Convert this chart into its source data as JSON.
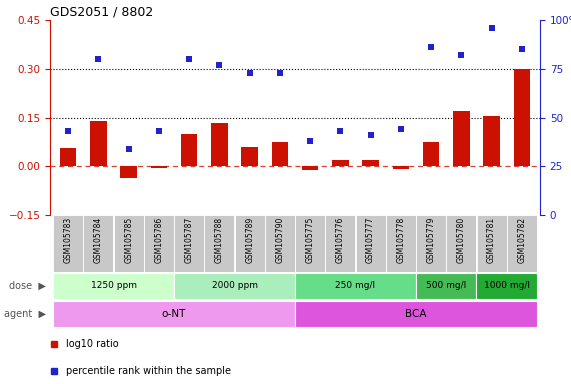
{
  "title": "GDS2051 / 8802",
  "samples": [
    "GSM105783",
    "GSM105784",
    "GSM105785",
    "GSM105786",
    "GSM105787",
    "GSM105788",
    "GSM105789",
    "GSM105790",
    "GSM105775",
    "GSM105776",
    "GSM105777",
    "GSM105778",
    "GSM105779",
    "GSM105780",
    "GSM105781",
    "GSM105782"
  ],
  "log10_ratio": [
    0.055,
    0.14,
    -0.035,
    -0.005,
    0.1,
    0.133,
    0.06,
    0.075,
    -0.012,
    0.018,
    0.018,
    -0.008,
    0.075,
    0.17,
    0.155,
    0.3
  ],
  "percentile": [
    43,
    80,
    34,
    43,
    80,
    77,
    73,
    73,
    38,
    43,
    41,
    44,
    86,
    82,
    96,
    85
  ],
  "bar_color": "#cc1100",
  "scatter_color": "#2222cc",
  "dose_groups": [
    {
      "label": "1250 ppm",
      "start": 0,
      "end": 4,
      "color": "#ccffcc"
    },
    {
      "label": "2000 ppm",
      "start": 4,
      "end": 8,
      "color": "#aaeebb"
    },
    {
      "label": "250 mg/l",
      "start": 8,
      "end": 12,
      "color": "#66dd88"
    },
    {
      "label": "500 mg/l",
      "start": 12,
      "end": 14,
      "color": "#44bb55"
    },
    {
      "label": "1000 mg/l",
      "start": 14,
      "end": 16,
      "color": "#22aa33"
    }
  ],
  "agent_groups": [
    {
      "label": "o-NT",
      "start": 0,
      "end": 8,
      "color": "#ee99ee"
    },
    {
      "label": "BCA",
      "start": 8,
      "end": 16,
      "color": "#dd55dd"
    }
  ],
  "ylim_left": [
    -0.15,
    0.45
  ],
  "ylim_right": [
    0,
    100
  ],
  "yticks_left": [
    -0.15,
    0.0,
    0.15,
    0.3,
    0.45
  ],
  "yticks_right": [
    0,
    25,
    50,
    75,
    100
  ],
  "hlines": [
    0.15,
    0.3
  ],
  "legend_items": [
    {
      "label": "log10 ratio",
      "color": "#cc1100"
    },
    {
      "label": "percentile rank within the sample",
      "color": "#2222cc"
    }
  ]
}
